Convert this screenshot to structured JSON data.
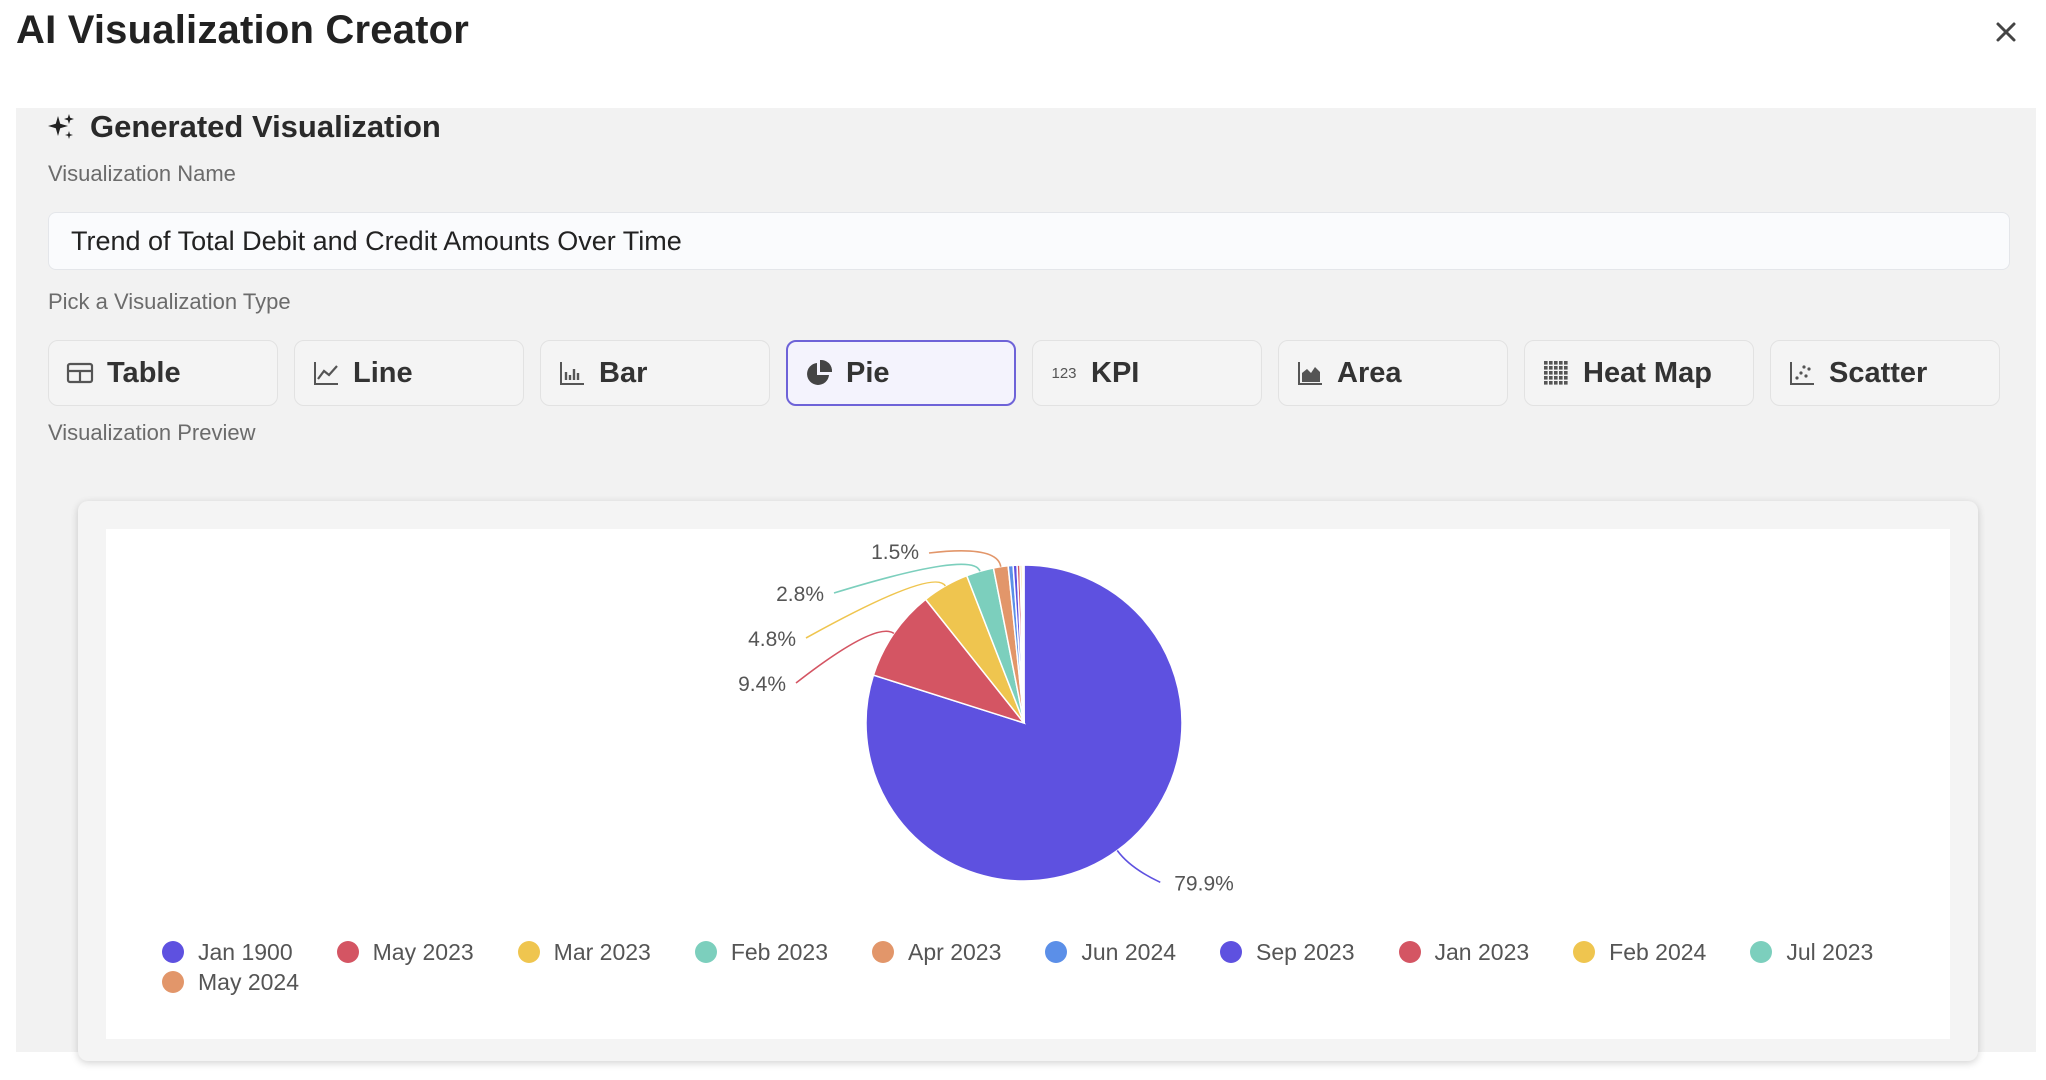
{
  "app": {
    "title": "AI Visualization Creator"
  },
  "icons": {
    "close": "close-icon",
    "sparkle": "sparkle-icon"
  },
  "section": {
    "title": "Generated Visualization",
    "name_label": "Visualization Name",
    "name_value": "Trend of Total Debit and Credit Amounts Over Time",
    "type_label": "Pick a Visualization Type",
    "preview_label": "Visualization Preview"
  },
  "types": [
    {
      "label": "Table",
      "icon": "table-icon",
      "active": false
    },
    {
      "label": "Line",
      "icon": "line-chart-icon",
      "active": false
    },
    {
      "label": "Bar",
      "icon": "bar-chart-icon",
      "active": false
    },
    {
      "label": "Pie",
      "icon": "pie-chart-icon",
      "active": true
    },
    {
      "label": "KPI",
      "icon": "kpi-icon",
      "icon_text": "123",
      "active": false
    },
    {
      "label": "Area",
      "icon": "area-chart-icon",
      "active": false
    },
    {
      "label": "Heat Map",
      "icon": "heat-map-icon",
      "active": false
    },
    {
      "label": "Scatter",
      "icon": "scatter-icon",
      "active": false
    }
  ],
  "colors": {
    "accent": "#6e63d8"
  },
  "chart_data": {
    "type": "pie",
    "slices": [
      {
        "name": "Jan 1900",
        "value": 79.9,
        "label": "79.9%",
        "color": "#5e51e0"
      },
      {
        "name": "May 2023",
        "value": 9.4,
        "label": "9.4%",
        "color": "#d45563"
      },
      {
        "name": "Mar 2023",
        "value": 4.8,
        "label": "4.8%",
        "color": "#efc54f"
      },
      {
        "name": "Feb 2023",
        "value": 2.8,
        "label": "2.8%",
        "color": "#7ccfbd"
      },
      {
        "name": "Apr 2023",
        "value": 1.5,
        "label": "1.5%",
        "color": "#e2966a"
      },
      {
        "name": "Jun 2024",
        "value": 0.5,
        "label": "",
        "color": "#5b8fe8"
      },
      {
        "name": "Sep 2023",
        "value": 0.4,
        "label": "",
        "color": "#5e51e0"
      },
      {
        "name": "Jan 2023",
        "value": 0.3,
        "label": "",
        "color": "#d45563"
      },
      {
        "name": "Feb 2024",
        "value": 0.2,
        "label": "",
        "color": "#efc54f"
      },
      {
        "name": "Jul 2023",
        "value": 0.1,
        "label": "",
        "color": "#7ccfbd"
      },
      {
        "name": "May 2024",
        "value": 0.1,
        "label": "",
        "color": "#e2966a"
      }
    ],
    "legend_position": "bottom"
  }
}
